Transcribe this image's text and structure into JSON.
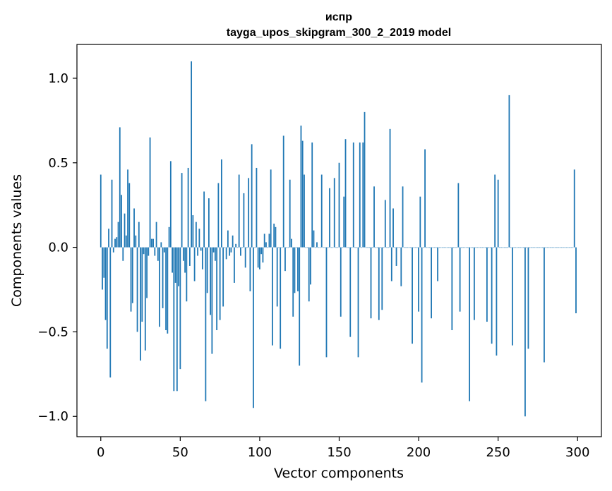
{
  "chart_data": {
    "type": "bar",
    "title_line1": "испр",
    "title_line2": "tayga_upos_skipgram_300_2_2019 model",
    "xlabel": "Vector components",
    "ylabel": "Components values",
    "xlim": [
      -15,
      315
    ],
    "ylim": [
      -1.12,
      1.2
    ],
    "xticks": [
      0,
      50,
      100,
      150,
      200,
      250,
      300
    ],
    "xtick_labels": [
      "0",
      "50",
      "100",
      "150",
      "200",
      "250",
      "300"
    ],
    "yticks": [
      -1.0,
      -0.5,
      0.0,
      0.5,
      1.0
    ],
    "ytick_labels": [
      "−1.0",
      "−0.5",
      "0.0",
      "0.5",
      "1.0"
    ],
    "bar_color": "#1f77b4",
    "values": [
      0.43,
      -0.25,
      -0.18,
      -0.43,
      -0.6,
      0.11,
      -0.77,
      0.4,
      -0.03,
      0.05,
      0.06,
      0.15,
      0.71,
      0.31,
      -0.08,
      0.2,
      0.07,
      0.46,
      0.38,
      -0.38,
      -0.33,
      0.23,
      0.07,
      -0.5,
      0.15,
      -0.67,
      -0.44,
      -0.04,
      -0.61,
      -0.3,
      -0.05,
      0.65,
      0.05,
      0.05,
      -0.05,
      0.15,
      -0.08,
      -0.47,
      0.03,
      -0.36,
      -0.03,
      -0.49,
      -0.51,
      0.12,
      0.51,
      -0.15,
      -0.85,
      -0.21,
      -0.85,
      -0.23,
      -0.72,
      0.44,
      -0.08,
      -0.15,
      -0.32,
      0.47,
      -0.11,
      1.1,
      0.19,
      -0.2,
      0.15,
      -0.05,
      0.11,
      -0.02,
      -0.13,
      0.33,
      -0.91,
      -0.27,
      0.29,
      -0.4,
      -0.63,
      -0.03,
      -0.08,
      -0.49,
      0.38,
      -0.43,
      0.52,
      -0.35,
      0.0,
      -0.07,
      0.1,
      -0.05,
      -0.03,
      0.07,
      -0.21,
      0.02,
      0.0,
      0.43,
      -0.05,
      0.0,
      0.32,
      -0.12,
      0.0,
      0.41,
      -0.26,
      0.61,
      -0.95,
      0.0,
      0.47,
      -0.12,
      -0.13,
      -0.04,
      -0.09,
      0.08,
      0.03,
      0.0,
      0.08,
      0.46,
      -0.58,
      0.14,
      0.12,
      -0.35,
      0.0,
      -0.6,
      0.0,
      0.66,
      -0.14,
      0.0,
      0.0,
      0.4,
      0.05,
      -0.41,
      -0.27,
      0.0,
      -0.26,
      -0.7,
      0.72,
      0.63,
      0.43,
      0.0,
      0.0,
      -0.32,
      -0.22,
      0.62,
      0.1,
      0.0,
      0.03,
      0.0,
      0.0,
      0.43,
      0.0,
      0.0,
      -0.65,
      0.0,
      0.35,
      0.0,
      0.0,
      0.41,
      0.0,
      0.0,
      0.5,
      -0.41,
      0.0,
      0.3,
      0.64,
      0.0,
      0.0,
      -0.53,
      0.0,
      0.62,
      0.0,
      0.0,
      -0.65,
      0.62,
      0.0,
      0.62,
      0.8,
      0.0,
      0.0,
      0.0,
      -0.42,
      0.0,
      0.36,
      0.0,
      0.0,
      -0.43,
      0.0,
      -0.37,
      0.0,
      0.28,
      0.0,
      0.0,
      0.7,
      -0.2,
      0.23,
      0.0,
      -0.11,
      0.0,
      0.0,
      -0.23,
      0.36,
      0.0,
      0.0,
      0.0,
      0.0,
      0.0,
      -0.57,
      0.0,
      0.0,
      0.0,
      -0.38,
      0.3,
      -0.8,
      0.0,
      0.58,
      0.0,
      0.0,
      0.0,
      -0.42,
      0.0,
      0.0,
      0.0,
      -0.2,
      0.0,
      0.0,
      0.0,
      0.0,
      0.0,
      0.0,
      0.0,
      0.0,
      -0.49,
      0.0,
      0.0,
      0.0,
      0.38,
      -0.38,
      0.0,
      0.0,
      0.0,
      0.0,
      0.0,
      -0.91,
      0.0,
      0.0,
      -0.43,
      0.0,
      0.0,
      0.0,
      0.0,
      0.0,
      0.0,
      0.0,
      -0.44,
      0.0,
      0.0,
      -0.57,
      0.0,
      0.43,
      -0.64,
      0.4,
      0.0,
      0.0,
      0.0,
      0.0,
      0.0,
      0.0,
      0.9,
      0.0,
      -0.58,
      0.0,
      0.0,
      0.0,
      0.0,
      0.0,
      0.0,
      0.0,
      -1.0,
      0.0,
      -0.6,
      0.0,
      0.0,
      0.0,
      0.0,
      0.0,
      0.0,
      0.0,
      0.0,
      0.0,
      -0.68,
      0.0,
      0.0,
      0.0,
      0.0,
      0.0,
      0.0,
      0.0,
      0.0,
      0.0,
      0.0,
      0.0,
      0.0,
      0.0,
      0.0,
      0.0,
      0.0,
      0.0,
      0.0,
      0.46,
      -0.39
    ]
  }
}
